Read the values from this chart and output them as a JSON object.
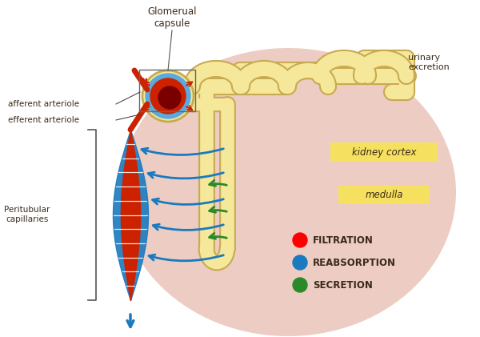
{
  "background_color": "#ffffff",
  "blob_color": "#d9927a",
  "tubule_color": "#f5e89a",
  "tubule_outline": "#c8aa50",
  "capillary_blue": "#1a7abf",
  "artery_red": "#cc2200",
  "green_arrow": "#2a8a2a",
  "text_color": "#3a2a1a",
  "label_bg": "#f5e060",
  "cortex_label": "kidney cortex",
  "medulla_label": "medulla",
  "glomerual_label": "Glomerual\ncapsule",
  "afferent_label": "afferent arteriole",
  "efferent_label": "efferent arteriole",
  "peritubular_label": "Peritubular\ncapillaries",
  "urinary_label": "urinary\nexcretion",
  "filtration_label": "FILTRATION",
  "reabsorption_label": "REABSORPTION",
  "secretion_label": "SECRETION",
  "figsize": [
    6.0,
    4.21
  ],
  "dpi": 100
}
